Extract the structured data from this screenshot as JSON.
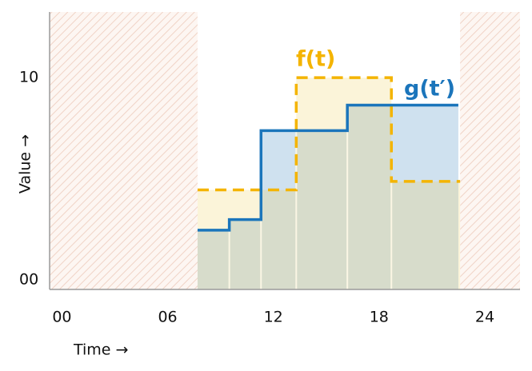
{
  "chart_data": {
    "type": "step",
    "x_label": "Time →",
    "y_label": "Value →",
    "xlim": [
      -0.7,
      26
    ],
    "ylim": [
      0,
      13.1
    ],
    "xticks": [
      {
        "value": 0,
        "label": "00"
      },
      {
        "value": 6,
        "label": "06"
      },
      12,
      18,
      24
    ],
    "yticks": [
      {
        "value": 0,
        "label": "00"
      },
      10
    ],
    "shaded_regions": [
      [
        -0.7,
        7.7
      ],
      [
        22.6,
        26
      ]
    ],
    "series": [
      {
        "name": "f(t)",
        "color": "#f4b400",
        "style": "dashed",
        "fill": "#fbf4d9",
        "x": [
          7.7,
          13.3,
          18.7,
          22.6
        ],
        "values": [
          4.7,
          10.0,
          5.1,
          5.1
        ]
      },
      {
        "name": "g(t′)",
        "color": "#1b75bb",
        "style": "solid",
        "fill": "#cfe1ef",
        "x": [
          7.7,
          9.5,
          11.3,
          16.2,
          22.5
        ],
        "values": [
          2.8,
          3.3,
          7.5,
          8.7,
          8.7
        ]
      }
    ]
  }
}
